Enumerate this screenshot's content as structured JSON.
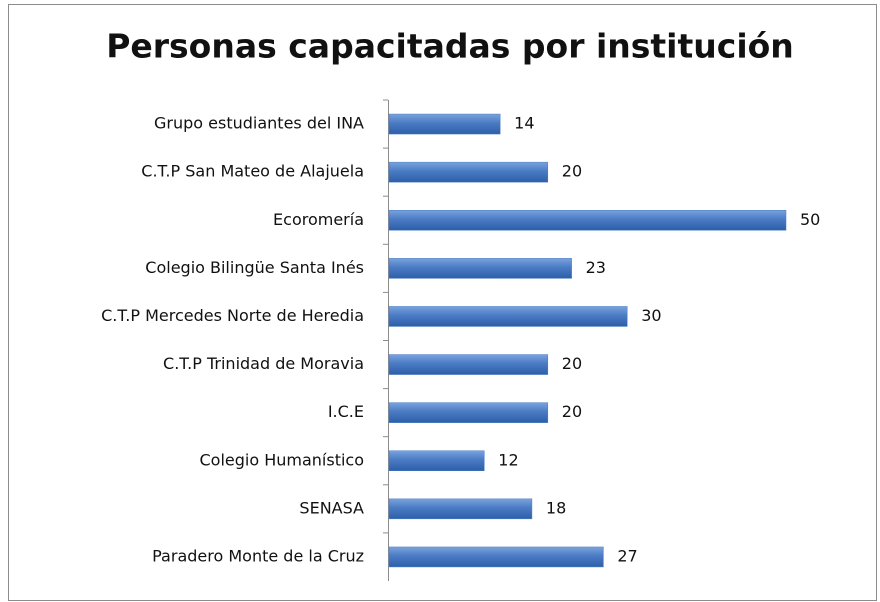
{
  "chart_data": {
    "type": "bar",
    "orientation": "horizontal",
    "title": "Personas capacitadas por institución",
    "categories": [
      "Grupo estudiantes del INA",
      "C.T.P San Mateo de Alajuela",
      "Ecoromería",
      "Colegio Bilingüe Santa Inés",
      "C.T.P Mercedes  Norte de Heredia",
      "C.T.P Trinidad de Moravia",
      "I.C.E",
      "Colegio Humanístico",
      "SENASA",
      "Paradero Monte de la Cruz"
    ],
    "values": [
      14,
      20,
      50,
      23,
      30,
      20,
      20,
      12,
      18,
      27
    ],
    "color": "#4a7bc4"
  }
}
